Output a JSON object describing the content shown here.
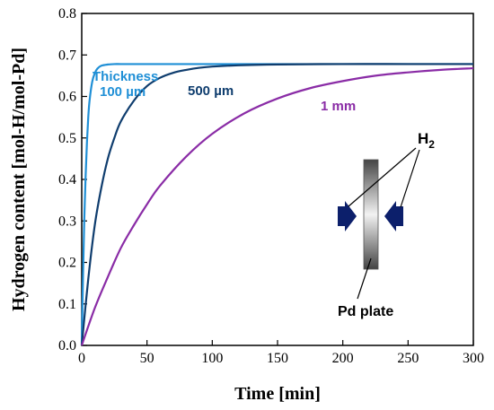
{
  "chart_data": {
    "type": "line",
    "xlabel": "Time [min]",
    "ylabel": "Hydrogen content [mol-H/mol-Pd]",
    "xlim": [
      0,
      300
    ],
    "ylim": [
      0,
      0.8
    ],
    "xticks": [
      "0",
      "50",
      "100",
      "150",
      "200",
      "250",
      "300"
    ],
    "yticks": [
      "0.0",
      "0.1",
      "0.2",
      "0.3",
      "0.4",
      "0.5",
      "0.6",
      "0.7",
      "0.8"
    ],
    "grid": false,
    "saturation": 0.678,
    "series": [
      {
        "name": "100 µm",
        "label_prefix": "Thickness",
        "color": "#1f8fd6",
        "x": [
          0,
          1,
          2,
          3,
          4,
          5,
          6,
          8,
          10,
          12,
          15,
          20,
          25,
          30,
          40,
          60,
          100,
          150,
          200,
          250,
          300
        ],
        "y": [
          0.0,
          0.17,
          0.31,
          0.41,
          0.49,
          0.55,
          0.59,
          0.635,
          0.656,
          0.667,
          0.674,
          0.677,
          0.678,
          0.678,
          0.678,
          0.678,
          0.678,
          0.678,
          0.678,
          0.678,
          0.678
        ]
      },
      {
        "name": "500 µm",
        "color": "#0f3d6e",
        "x": [
          0,
          5,
          10,
          15,
          20,
          25,
          30,
          40,
          50,
          60,
          70,
          80,
          90,
          100,
          120,
          150,
          200,
          250,
          300
        ],
        "y": [
          0.0,
          0.16,
          0.29,
          0.38,
          0.45,
          0.5,
          0.54,
          0.59,
          0.625,
          0.645,
          0.657,
          0.664,
          0.669,
          0.672,
          0.675,
          0.677,
          0.678,
          0.678,
          0.678
        ]
      },
      {
        "name": "1 mm",
        "color": "#8a2ca6",
        "x": [
          0,
          10,
          20,
          30,
          40,
          50,
          60,
          80,
          100,
          125,
          150,
          175,
          200,
          225,
          250,
          275,
          300
        ],
        "y": [
          0.0,
          0.09,
          0.165,
          0.235,
          0.29,
          0.34,
          0.385,
          0.455,
          0.51,
          0.56,
          0.595,
          0.62,
          0.637,
          0.65,
          0.658,
          0.664,
          0.668
        ]
      }
    ]
  },
  "inset": {
    "gas_label": "H",
    "gas_subscript": "2",
    "plate_label": "Pd plate",
    "arrow_color": "#0c1f6b"
  }
}
